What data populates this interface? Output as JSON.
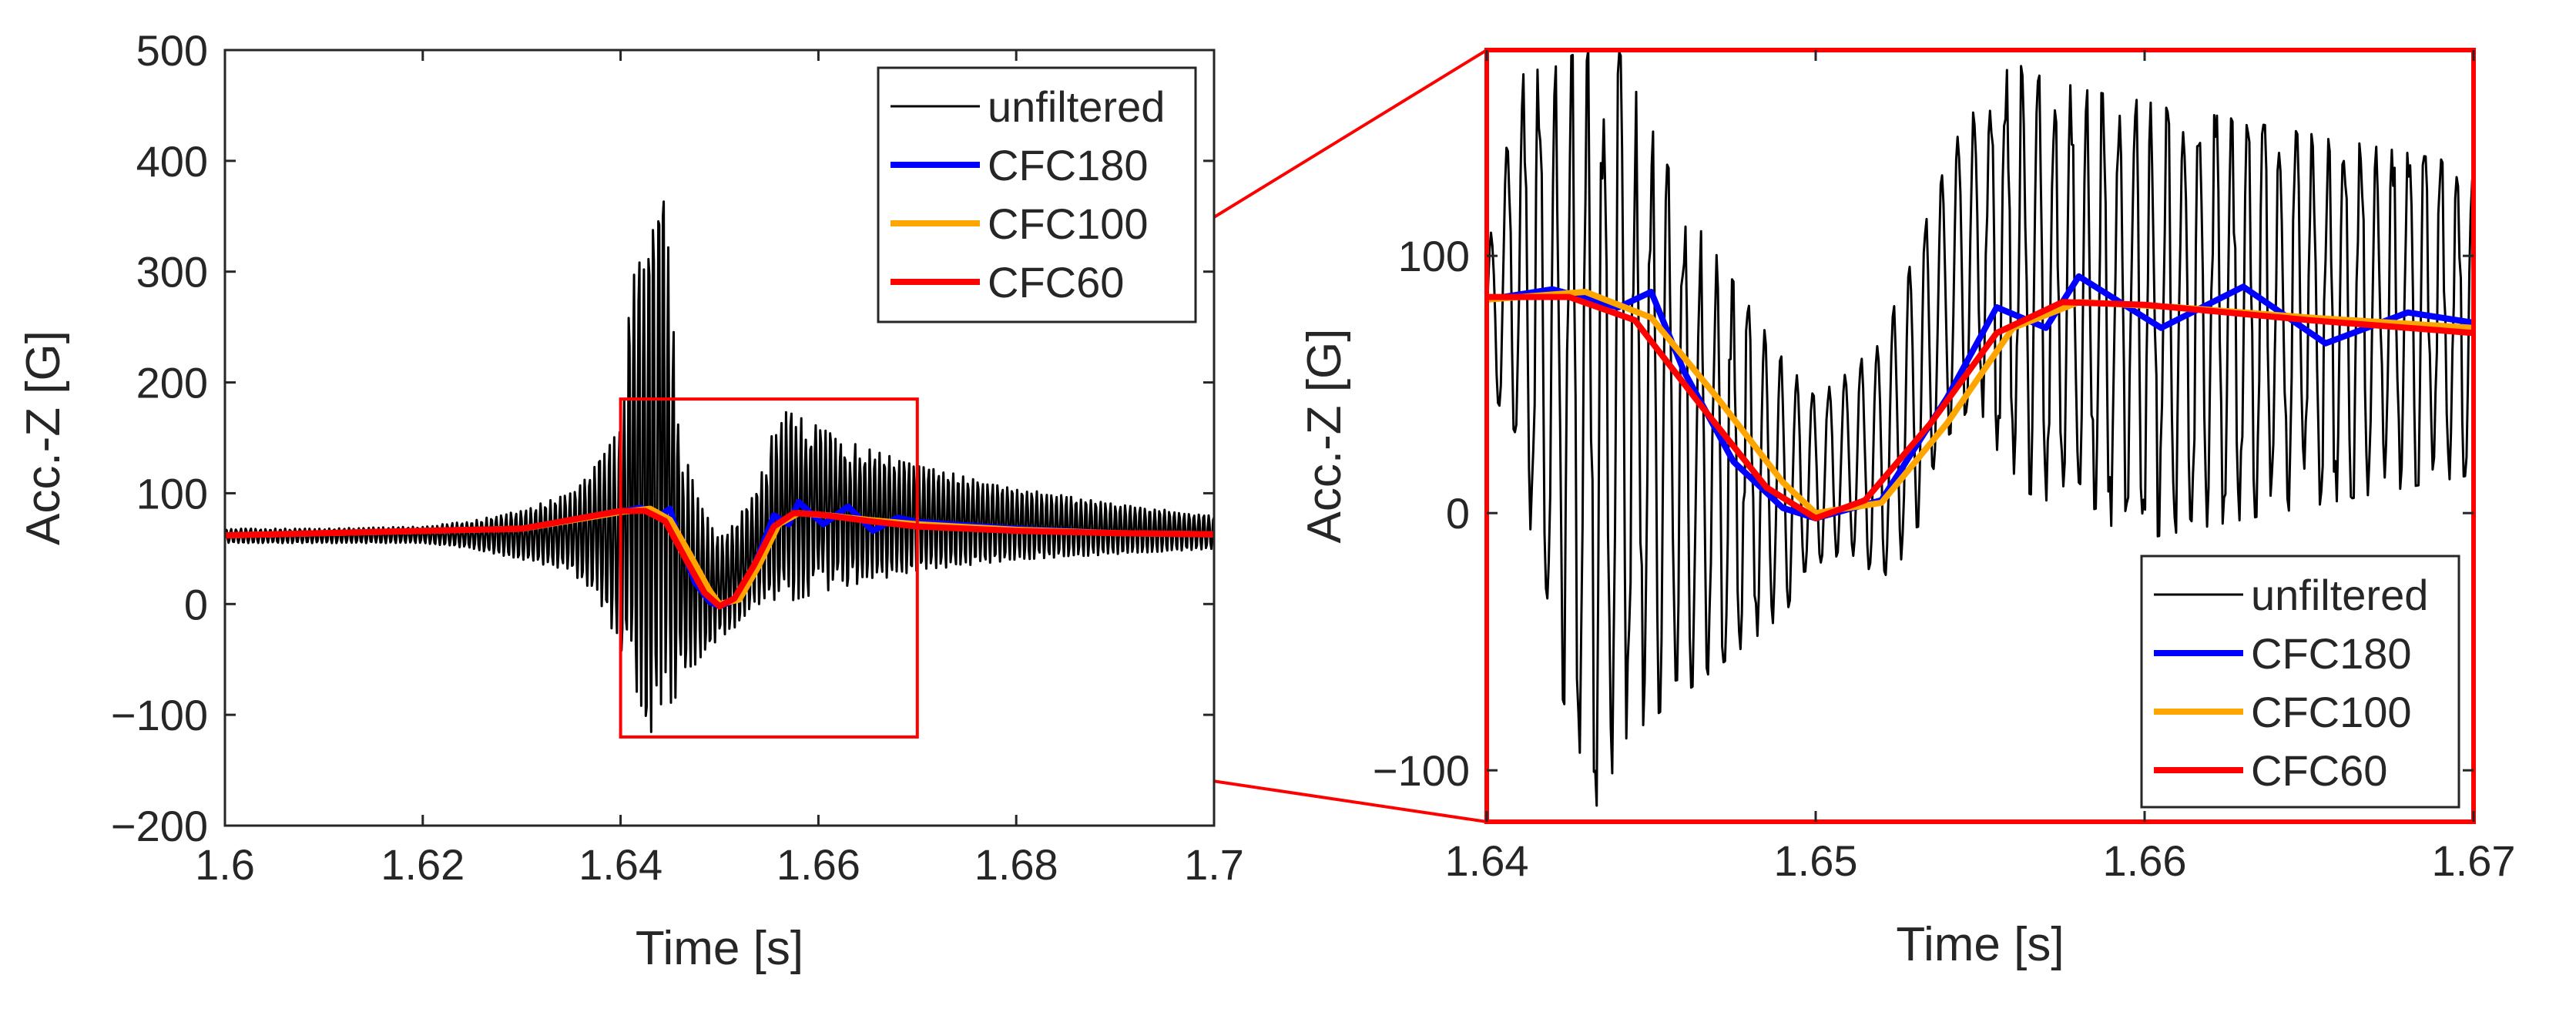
{
  "chart_data": [
    {
      "type": "line",
      "xlabel": "Time [s]",
      "ylabel": "Acc.-Z [G]",
      "xlim": [
        1.6,
        1.7
      ],
      "ylim": [
        -200,
        500
      ],
      "xticks": [
        "1.6",
        "1.62",
        "1.64",
        "1.66",
        "1.68",
        "1.7"
      ],
      "yticks": [
        "−200",
        "−100",
        "0",
        "100",
        "200",
        "300",
        "400",
        "500"
      ],
      "legend_position": "top-right",
      "legend": [
        "unfiltered",
        "CFC180",
        "CFC100",
        "CFC60"
      ],
      "zoom_box": {
        "x": [
          1.64,
          1.67
        ],
        "y": [
          -120,
          185
        ],
        "color": "#ff0000"
      },
      "series": [
        {
          "name": "unfiltered",
          "color": "#000000",
          "x": [
            1.6,
            1.61,
            1.62,
            1.625,
            1.63,
            1.635,
            1.638,
            1.64,
            1.641,
            1.642,
            1.643,
            1.6435,
            1.644,
            1.645,
            1.646,
            1.647,
            1.648,
            1.65,
            1.652,
            1.654,
            1.656,
            1.658,
            1.66,
            1.662,
            1.665,
            1.67,
            1.675,
            1.68,
            1.69,
            1.7
          ],
          "peaks": [
            68,
            68,
            70,
            75,
            85,
            100,
            130,
            160,
            280,
            330,
            360,
            380,
            420,
            300,
            150,
            120,
            90,
            60,
            80,
            110,
            175,
            170,
            160,
            150,
            140,
            125,
            115,
            105,
            90,
            80
          ],
          "troughs": [
            55,
            55,
            55,
            50,
            40,
            30,
            0,
            -40,
            -60,
            -90,
            -110,
            -140,
            -120,
            -90,
            -80,
            -60,
            -50,
            -30,
            -20,
            0,
            0,
            5,
            10,
            15,
            20,
            30,
            35,
            40,
            45,
            50
          ]
        },
        {
          "name": "CFC180",
          "color": "#0000ff",
          "x": [
            1.6,
            1.63,
            1.64,
            1.642,
            1.644,
            1.645,
            1.646,
            1.6475,
            1.649,
            1.65,
            1.652,
            1.654,
            1.6555,
            1.657,
            1.658,
            1.6605,
            1.663,
            1.6655,
            1.668,
            1.67,
            1.68,
            1.69,
            1.7
          ],
          "y": [
            62,
            68,
            83,
            87,
            80,
            86,
            55,
            20,
            2,
            -2,
            5,
            45,
            80,
            72,
            92,
            72,
            88,
            66,
            78,
            74,
            68,
            64,
            63
          ]
        },
        {
          "name": "CFC100",
          "color": "#ffa500",
          "x": [
            1.6,
            1.63,
            1.64,
            1.643,
            1.645,
            1.647,
            1.649,
            1.65,
            1.652,
            1.654,
            1.656,
            1.658,
            1.661,
            1.665,
            1.67,
            1.68,
            1.69,
            1.7
          ],
          "y": [
            62,
            68,
            83,
            86,
            76,
            45,
            12,
            0,
            4,
            35,
            72,
            82,
            80,
            76,
            72,
            67,
            64,
            63
          ]
        },
        {
          "name": "CFC60",
          "color": "#ff0000",
          "x": [
            1.6,
            1.63,
            1.64,
            1.6425,
            1.6445,
            1.6465,
            1.6485,
            1.65,
            1.6515,
            1.6535,
            1.6555,
            1.6575,
            1.66,
            1.665,
            1.67,
            1.68,
            1.69,
            1.7
          ],
          "y": [
            62,
            68,
            84,
            84,
            75,
            42,
            10,
            -2,
            5,
            35,
            70,
            82,
            81,
            75,
            70,
            66,
            64,
            63
          ]
        }
      ]
    },
    {
      "type": "line",
      "xlabel": "Time [s]",
      "ylabel": "Acc.-Z [G]",
      "xlim": [
        1.64,
        1.67
      ],
      "ylim": [
        -120,
        180
      ],
      "xticks": [
        "1.64",
        "1.65",
        "1.66",
        "1.67"
      ],
      "yticks": [
        "−100",
        "0",
        "100"
      ],
      "legend_position": "bottom-right",
      "legend": [
        "unfiltered",
        "CFC180",
        "CFC100",
        "CFC60"
      ],
      "frame_color": "#ff0000",
      "series": [
        {
          "name": "unfiltered",
          "color": "#000000",
          "x": [
            1.64,
            1.641,
            1.642,
            1.643,
            1.6435,
            1.644,
            1.645,
            1.646,
            1.647,
            1.648,
            1.649,
            1.65,
            1.651,
            1.652,
            1.653,
            1.654,
            1.655,
            1.656,
            1.658,
            1.66,
            1.662,
            1.664,
            1.666,
            1.668,
            1.67
          ],
          "peaks": [
            100,
            170,
            175,
            180,
            180,
            180,
            150,
            120,
            100,
            80,
            60,
            45,
            55,
            70,
            100,
            140,
            160,
            175,
            165,
            160,
            155,
            150,
            145,
            140,
            135
          ],
          "troughs": [
            50,
            20,
            -60,
            -100,
            -120,
            -90,
            -80,
            -70,
            -60,
            -50,
            -40,
            -20,
            -15,
            -30,
            -10,
            30,
            40,
            10,
            0,
            -10,
            -5,
            0,
            5,
            10,
            15
          ]
        },
        {
          "name": "CFC180",
          "color": "#0000ff",
          "x": [
            1.64,
            1.642,
            1.644,
            1.645,
            1.646,
            1.6475,
            1.649,
            1.65,
            1.652,
            1.654,
            1.6555,
            1.657,
            1.658,
            1.6605,
            1.663,
            1.6655,
            1.668,
            1.67
          ],
          "y": [
            83,
            87,
            80,
            86,
            55,
            20,
            2,
            -2,
            5,
            45,
            80,
            72,
            92,
            72,
            88,
            66,
            78,
            74
          ]
        },
        {
          "name": "CFC100",
          "color": "#ffa500",
          "x": [
            1.64,
            1.643,
            1.645,
            1.647,
            1.649,
            1.65,
            1.652,
            1.654,
            1.656,
            1.658,
            1.661,
            1.665,
            1.67
          ],
          "y": [
            83,
            86,
            76,
            45,
            12,
            0,
            4,
            35,
            72,
            82,
            80,
            76,
            72
          ]
        },
        {
          "name": "CFC60",
          "color": "#ff0000",
          "x": [
            1.64,
            1.6425,
            1.6445,
            1.6465,
            1.6485,
            1.65,
            1.6515,
            1.6535,
            1.6555,
            1.6575,
            1.66,
            1.665,
            1.67
          ],
          "y": [
            84,
            84,
            75,
            42,
            10,
            -2,
            5,
            35,
            70,
            82,
            81,
            75,
            70
          ]
        }
      ]
    }
  ]
}
